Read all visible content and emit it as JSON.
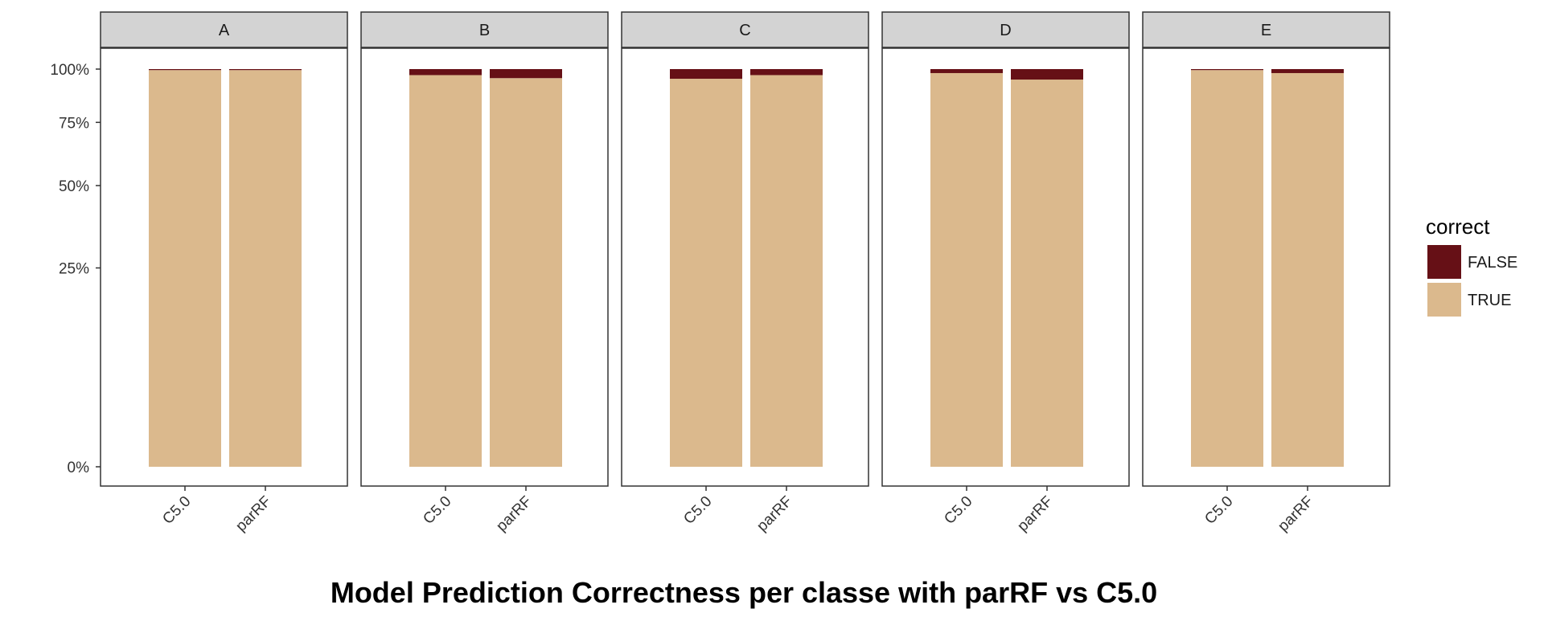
{
  "chart_data": {
    "type": "bar",
    "stacked": true,
    "title": "Model Prediction Correctness per classe with parRF vs C5.0",
    "facets": [
      "A",
      "B",
      "C",
      "D",
      "E"
    ],
    "categories": [
      "C5.0",
      "parRF"
    ],
    "y_ticks": [
      "0%",
      "25%",
      "50%",
      "75%",
      "100%"
    ],
    "ylim": [
      0,
      1
    ],
    "legend": {
      "title": "correct",
      "position": "right",
      "entries": [
        "FALSE",
        "TRUE"
      ]
    },
    "colors": {
      "FALSE": "#661016",
      "TRUE": "#dbb98d",
      "strip_bg": "#d3d3d3",
      "axis": "#333333",
      "text": "#333333"
    },
    "series": [
      {
        "name": "TRUE",
        "values": {
          "A": [
            0.995,
            0.995
          ],
          "B": [
            0.97,
            0.955
          ],
          "C": [
            0.952,
            0.97
          ],
          "D": [
            0.98,
            0.948
          ],
          "E": [
            0.995,
            0.98
          ]
        }
      },
      {
        "name": "FALSE",
        "values": {
          "A": [
            0.005,
            0.005
          ],
          "B": [
            0.03,
            0.045
          ],
          "C": [
            0.048,
            0.03
          ],
          "D": [
            0.02,
            0.052
          ],
          "E": [
            0.005,
            0.02
          ]
        }
      }
    ]
  }
}
